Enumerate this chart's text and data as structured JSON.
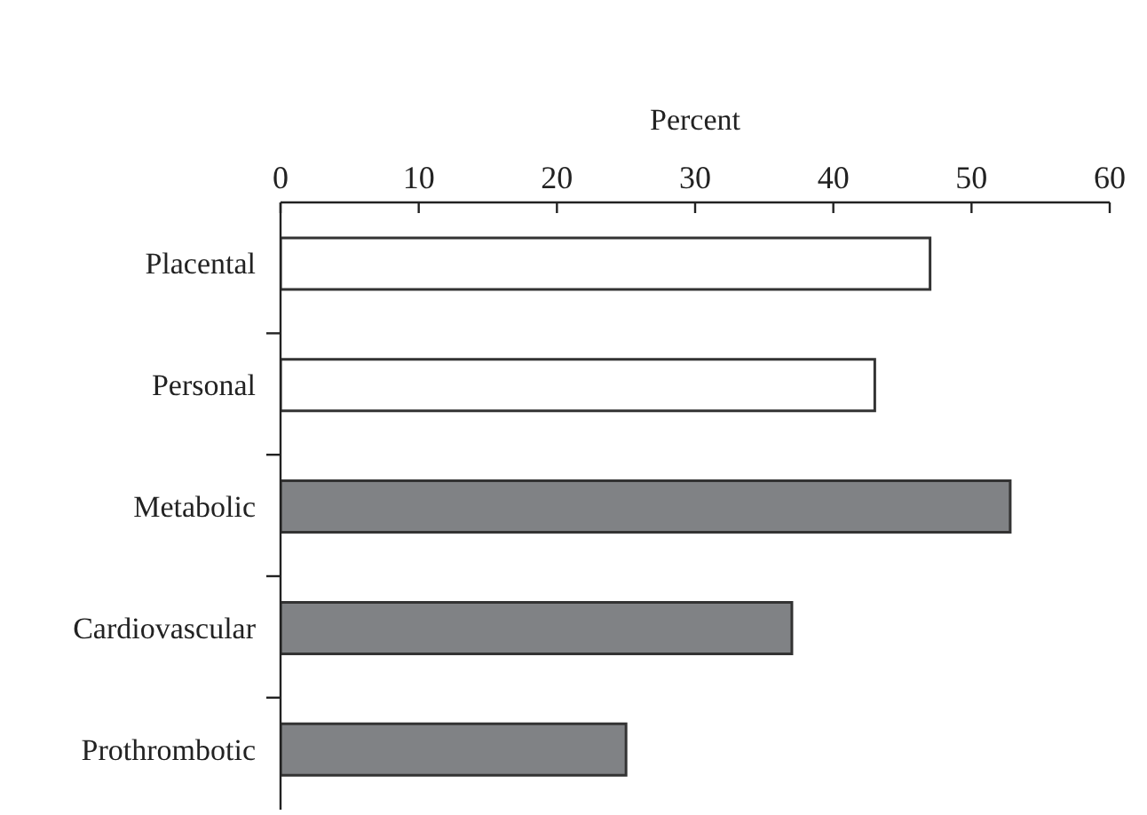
{
  "chart_data": {
    "type": "bar",
    "orientation": "horizontal",
    "xlabel": "Percent",
    "categories": [
      "Placental",
      "Personal",
      "Metabolic",
      "Cardiovascular",
      "Prothrombotic"
    ],
    "values": [
      47,
      43,
      52.8,
      37,
      25
    ],
    "colors": [
      "#ffffff",
      "#ffffff",
      "#808285",
      "#808285",
      "#808285"
    ],
    "xlim": [
      0,
      60
    ],
    "xticks": [
      0,
      10,
      20,
      30,
      40,
      50,
      60
    ],
    "grid": false,
    "legend": false
  }
}
